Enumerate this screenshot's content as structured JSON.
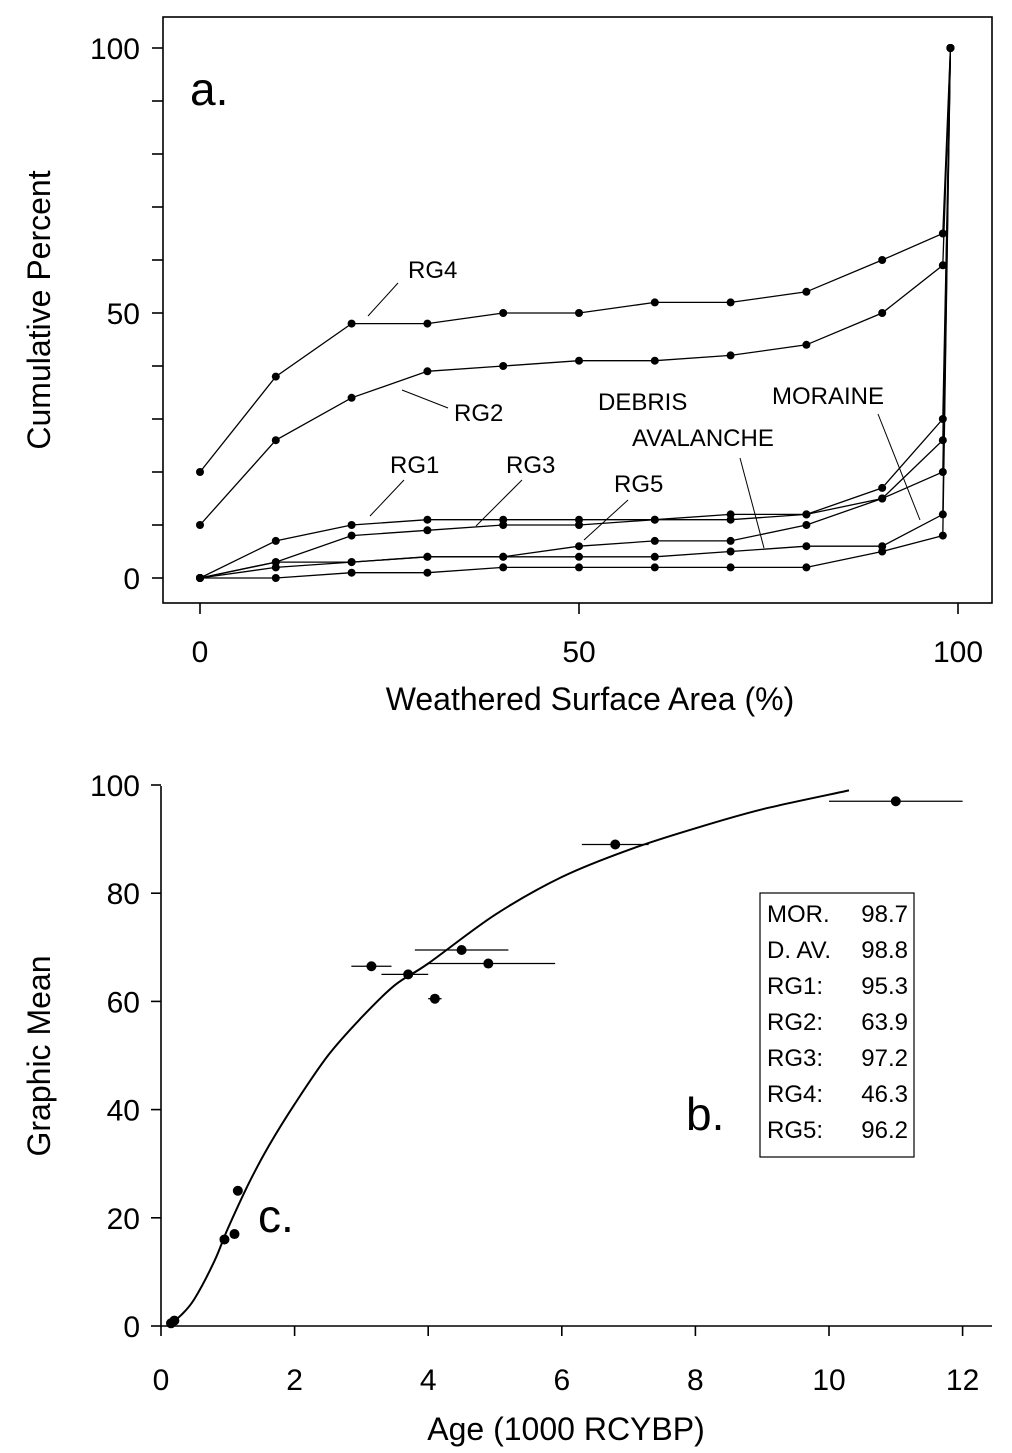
{
  "chart_data": [
    {
      "panel_label": "a.",
      "type": "line",
      "xlabel": "Weathered Surface Area (%)",
      "ylabel": "Cumulative Percent",
      "xlim": [
        -5,
        105
      ],
      "ylim": [
        -5,
        100
      ],
      "xticks": [
        0,
        50,
        100
      ],
      "xtick_labels": [
        "0",
        "50",
        "100"
      ],
      "yticks": [
        0,
        10,
        20,
        30,
        40,
        50,
        60,
        70,
        80,
        90,
        100
      ],
      "ytick_labels": [
        "0",
        "",
        "",
        "",
        "",
        "50",
        "",
        "",
        "",
        "",
        "100"
      ],
      "x": [
        0,
        10,
        20,
        30,
        40,
        50,
        60,
        70,
        80,
        90,
        98,
        99
      ],
      "series": [
        {
          "name": "RG4",
          "values": [
            20,
            38,
            48,
            48,
            50,
            50,
            52,
            52,
            54,
            60,
            65,
            100
          ]
        },
        {
          "name": "RG2",
          "values": [
            10,
            26,
            34,
            39,
            40,
            41,
            41,
            42,
            44,
            50,
            59,
            100
          ]
        },
        {
          "name": "RG1",
          "values": [
            0,
            7,
            10,
            11,
            11,
            11,
            11,
            12,
            12,
            17,
            30,
            100
          ]
        },
        {
          "name": "RG3",
          "values": [
            0,
            3,
            8,
            9,
            10,
            10,
            11,
            11,
            12,
            15,
            26,
            100
          ]
        },
        {
          "name": "RG5",
          "values": [
            0,
            3,
            3,
            4,
            4,
            6,
            7,
            7,
            10,
            15,
            20,
            100
          ]
        },
        {
          "name": "DEBRIS AVALANCHE",
          "values": [
            0,
            2,
            3,
            4,
            4,
            4,
            4,
            5,
            6,
            6,
            12,
            100
          ]
        },
        {
          "name": "MORAINE",
          "values": [
            0,
            0,
            1,
            1,
            2,
            2,
            2,
            2,
            2,
            5,
            8,
            100
          ]
        }
      ],
      "annotations": [
        "RG4",
        "RG2",
        "RG1",
        "RG3",
        "RG5",
        "DEBRIS",
        "AVALANCHE",
        "MORAINE"
      ]
    },
    {
      "panel_label": "b.",
      "extra_label": "c.",
      "type": "scatter",
      "xlabel": "Age (1000 RCYBP)",
      "ylabel": "Graphic Mean",
      "xlim": [
        0,
        12.5
      ],
      "ylim": [
        0,
        103
      ],
      "xticks": [
        0,
        2,
        4,
        6,
        8,
        10,
        12
      ],
      "xtick_labels": [
        "0",
        "2",
        "4",
        "6",
        "8",
        "10",
        "12"
      ],
      "yticks": [
        0,
        20,
        40,
        60,
        80,
        100
      ],
      "ytick_labels": [
        "0",
        "20",
        "40",
        "60",
        "80",
        "100"
      ],
      "points": [
        {
          "x": 0.15,
          "y": 0.5
        },
        {
          "x": 0.2,
          "y": 1
        },
        {
          "x": 0.95,
          "y": 16,
          "xerr": [
            0.9,
            1.0
          ]
        },
        {
          "x": 1.1,
          "y": 17
        },
        {
          "x": 1.15,
          "y": 25,
          "xerr": [
            1.1,
            1.2
          ]
        },
        {
          "x": 3.15,
          "y": 66.5,
          "xerr": [
            2.85,
            3.45
          ]
        },
        {
          "x": 3.7,
          "y": 65,
          "xerr": [
            3.3,
            4.0
          ]
        },
        {
          "x": 4.1,
          "y": 60.5,
          "xerr": [
            4.0,
            4.2
          ]
        },
        {
          "x": 4.5,
          "y": 69.5,
          "xerr": [
            3.8,
            5.2
          ]
        },
        {
          "x": 4.9,
          "y": 67,
          "xerr": [
            4.0,
            5.9
          ]
        },
        {
          "x": 6.8,
          "y": 89,
          "xerr": [
            6.3,
            7.3
          ]
        },
        {
          "x": 11.0,
          "y": 97,
          "xerr": [
            10.0,
            12.0
          ]
        }
      ],
      "curve": {
        "x": [
          0.1,
          0.3,
          0.5,
          0.8,
          1.0,
          1.3,
          1.6,
          2.0,
          2.5,
          3.0,
          3.5,
          4.0,
          5.0,
          6.0,
          7.0,
          8.0,
          9.0,
          10.3
        ],
        "y": [
          0,
          2,
          5,
          12,
          18,
          26,
          33,
          41,
          50,
          57,
          63,
          67,
          76,
          83,
          88,
          92,
          95.5,
          99
        ]
      },
      "legend": [
        {
          "label": "MOR.",
          "value": "98.7"
        },
        {
          "label": "D. AV.",
          "value": "98.8"
        },
        {
          "label": "RG1:",
          "value": "95.3"
        },
        {
          "label": "RG2:",
          "value": "63.9"
        },
        {
          "label": "RG3:",
          "value": "97.2"
        },
        {
          "label": "RG4:",
          "value": "46.3"
        },
        {
          "label": "RG5:",
          "value": "96.2"
        }
      ]
    }
  ]
}
